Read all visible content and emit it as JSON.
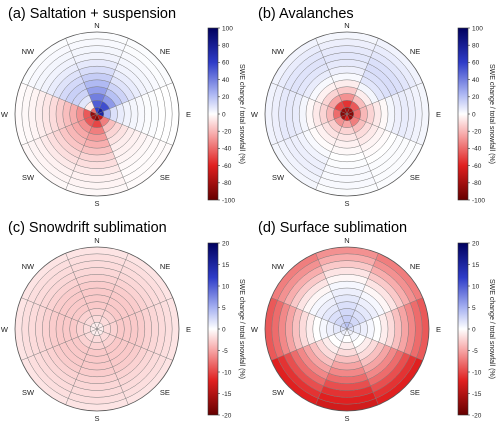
{
  "chart_data": [
    {
      "type": "heatmap",
      "subtype": "polar",
      "title": "(a) Saltation + suspension",
      "directions": [
        "N",
        "NE",
        "E",
        "SE",
        "S",
        "SW",
        "W",
        "NW"
      ],
      "colorbar": {
        "label": "SWE change / total snowfall (%)",
        "ticks": [
          "100",
          "80",
          "60",
          "40",
          "20",
          "0",
          "-20",
          "-40",
          "-60",
          "-80",
          "-100"
        ],
        "range": [
          -100,
          100
        ]
      },
      "ring_count": 12,
      "values": [
        [
          60,
          50,
          40,
          30,
          22,
          16,
          11,
          7,
          4,
          3,
          2,
          1
        ],
        [
          80,
          55,
          32,
          20,
          14,
          9,
          6,
          4,
          3,
          2,
          1,
          1
        ],
        [
          75,
          25,
          10,
          6,
          4,
          3,
          2,
          1,
          1,
          0,
          0,
          0
        ],
        [
          -70,
          -35,
          -18,
          -12,
          -8,
          -5,
          -4,
          -3,
          -2,
          -1,
          -1,
          -1
        ],
        [
          -90,
          -50,
          -35,
          -28,
          -22,
          -17,
          -12,
          -9,
          -6,
          -4,
          -3,
          -2
        ],
        [
          -80,
          -45,
          -30,
          -24,
          -20,
          -16,
          -12,
          -9,
          -6,
          -4,
          -3,
          -2
        ],
        [
          -85,
          -45,
          -30,
          -23,
          -18,
          -14,
          -10,
          -7,
          -5,
          -3,
          -2,
          -1
        ],
        [
          -40,
          -5,
          8,
          14,
          15,
          12,
          9,
          6,
          4,
          3,
          2,
          1
        ]
      ]
    },
    {
      "type": "heatmap",
      "subtype": "polar",
      "title": "(b) Avalanches",
      "directions": [
        "N",
        "NE",
        "E",
        "SE",
        "S",
        "SW",
        "W",
        "NW"
      ],
      "colorbar": {
        "label": "SWE change / total snowfall (%)",
        "ticks": [
          "100",
          "80",
          "60",
          "40",
          "20",
          "0",
          "-20",
          "-40",
          "-60",
          "-80",
          "-100"
        ],
        "range": [
          -100,
          100
        ]
      },
      "ring_count": 12,
      "values": [
        [
          -80,
          -55,
          -30,
          -15,
          -5,
          2,
          5,
          7,
          8,
          7,
          5,
          3
        ],
        [
          -85,
          -45,
          -18,
          -5,
          3,
          8,
          10,
          11,
          10,
          8,
          6,
          4
        ],
        [
          -90,
          -40,
          -20,
          -12,
          -6,
          -2,
          3,
          5,
          6,
          5,
          4,
          3
        ],
        [
          -85,
          -35,
          -18,
          -10,
          -6,
          -3,
          -1,
          0,
          1,
          1,
          1,
          1
        ],
        [
          -60,
          -25,
          -12,
          -7,
          -4,
          -2,
          0,
          1,
          2,
          2,
          2,
          1
        ],
        [
          -80,
          -30,
          -14,
          -8,
          -4,
          -1,
          2,
          4,
          5,
          5,
          4,
          3
        ],
        [
          -90,
          -40,
          -20,
          -12,
          -6,
          -2,
          3,
          6,
          7,
          7,
          5,
          4
        ],
        [
          -85,
          -50,
          -25,
          -12,
          -4,
          2,
          6,
          8,
          9,
          8,
          6,
          4
        ]
      ]
    },
    {
      "type": "heatmap",
      "subtype": "polar",
      "title": "(c) Snowdrift sublimation",
      "directions": [
        "N",
        "NE",
        "E",
        "SE",
        "S",
        "SW",
        "W",
        "NW"
      ],
      "colorbar": {
        "label": "SWE change / total snowfall (%)",
        "ticks": [
          "20",
          "15",
          "10",
          "5",
          "0",
          "-5",
          "-10",
          "-15",
          "-20"
        ],
        "range": [
          -20,
          20
        ]
      },
      "ring_count": 12,
      "values": [
        [
          -1,
          -2,
          -2.5,
          -3,
          -3,
          -3,
          -2.8,
          -2.5,
          -2.2,
          -2,
          -1.8,
          -1.5
        ],
        [
          -1,
          -2,
          -2.5,
          -3,
          -3,
          -3,
          -2.8,
          -2.5,
          -2.2,
          -2,
          -1.8,
          -1.5
        ],
        [
          -1,
          -2,
          -2.5,
          -3,
          -3,
          -3,
          -2.8,
          -2.5,
          -2.2,
          -2,
          -1.8,
          -1.5
        ],
        [
          -1,
          -2,
          -2.5,
          -3,
          -3,
          -3,
          -2.8,
          -2.5,
          -2.2,
          -2,
          -1.8,
          -1.5
        ],
        [
          -1,
          -2,
          -2.5,
          -3,
          -3,
          -3,
          -2.8,
          -2.5,
          -2.2,
          -2,
          -1.8,
          -1.5
        ],
        [
          -1,
          -2,
          -2.5,
          -3,
          -3,
          -3,
          -2.8,
          -2.5,
          -2.2,
          -2,
          -1.8,
          -1.5
        ],
        [
          -1,
          -2,
          -2.5,
          -3,
          -3,
          -3,
          -2.8,
          -2.5,
          -2.2,
          -2,
          -1.8,
          -1.5
        ],
        [
          -1,
          -2,
          -2.5,
          -3,
          -3,
          -3,
          -2.8,
          -2.5,
          -2.2,
          -2,
          -1.8,
          -1.5
        ]
      ]
    },
    {
      "type": "heatmap",
      "subtype": "polar",
      "title": "(d) Surface sublimation",
      "directions": [
        "N",
        "NE",
        "E",
        "SE",
        "S",
        "SW",
        "W",
        "NW"
      ],
      "colorbar": {
        "label": "SWE change / total snowfall (%)",
        "ticks": [
          "20",
          "15",
          "10",
          "5",
          "0",
          "-5",
          "-10",
          "-15",
          "-20"
        ],
        "range": [
          -20,
          20
        ]
      },
      "ring_count": 12,
      "values": [
        [
          4,
          3,
          2.5,
          2,
          1.5,
          1,
          0.5,
          -0.5,
          -1.5,
          -3,
          -4.5,
          -6
        ],
        [
          3,
          2.5,
          2,
          1.5,
          1,
          0.5,
          -0.5,
          -1.5,
          -3,
          -4.5,
          -6,
          -7
        ],
        [
          2,
          1.5,
          1,
          0.5,
          0,
          -1,
          -2,
          -3.5,
          -5,
          -6.5,
          -8,
          -9
        ],
        [
          1,
          0.5,
          0,
          -1,
          -2,
          -3.5,
          -5,
          -6.5,
          -8,
          -9.5,
          -11,
          -12
        ],
        [
          0.5,
          0,
          -1,
          -2,
          -3.5,
          -5,
          -6.5,
          -8,
          -9.5,
          -11,
          -12,
          -13
        ],
        [
          1,
          0.5,
          0,
          -1,
          -2,
          -3.5,
          -5,
          -6.5,
          -8,
          -9.5,
          -11,
          -12
        ],
        [
          2,
          1.5,
          1,
          0.5,
          0,
          -1,
          -2,
          -3.5,
          -5,
          -6.5,
          -8,
          -9
        ],
        [
          3,
          2.5,
          2,
          1.5,
          1,
          0.5,
          -0.5,
          -1.5,
          -3,
          -4.5,
          -6,
          -7
        ]
      ]
    }
  ]
}
